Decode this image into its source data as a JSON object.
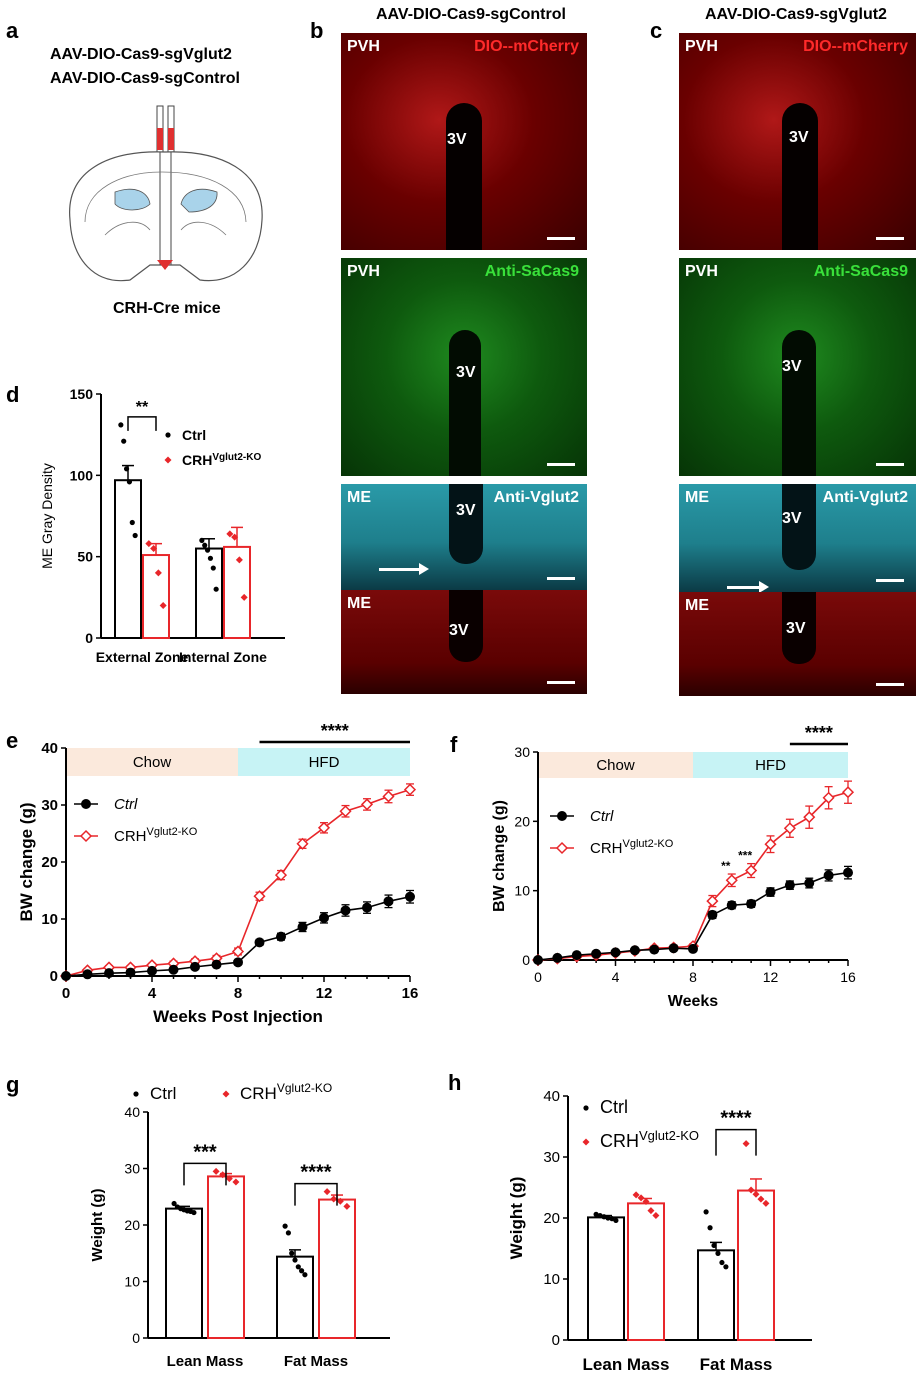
{
  "panels": {
    "a": {
      "letter": "a",
      "line1": "AAV-DIO-Cas9-sgVglut2",
      "line2": "AAV-DIO-Cas9-sgControl",
      "caption": "CRH-Cre mice"
    },
    "b": {
      "letter": "b",
      "header": "AAV-DIO-Cas9-sgControl"
    },
    "c": {
      "letter": "c",
      "header": "AAV-DIO-Cas9-sgVglut2"
    },
    "d": {
      "letter": "d"
    },
    "e": {
      "letter": "e"
    },
    "f": {
      "letter": "f"
    },
    "g": {
      "letter": "g"
    },
    "h": {
      "letter": "h"
    }
  },
  "micro": {
    "pvh": "PVH",
    "me": "ME",
    "v3": "3V",
    "mcherry": "DIO--mCherry",
    "cas9": "Anti-SaCas9",
    "vglut2": "Anti-Vglut2"
  },
  "colors": {
    "ctrl": "#000000",
    "ko": "#e8262a",
    "chow_band": "#fbe9dc",
    "hfd_band": "#c7f3f5"
  },
  "chart_data": [
    {
      "id": "d",
      "type": "bar",
      "ylabel": "ME Gray Density",
      "ylim": [
        0,
        150
      ],
      "yticks": [
        0,
        50,
        100,
        150
      ],
      "categories": [
        "External Zone",
        "Internal Zone"
      ],
      "legend": {
        "ctrl": "Ctrl",
        "ko_base": "CRH",
        "ko_sup": "Vglut2-KO"
      },
      "series": [
        {
          "name": "Ctrl",
          "values": [
            97,
            55
          ],
          "sem": [
            9,
            6
          ],
          "points": [
            [
              131,
              121,
              104,
              96,
              71,
              63
            ],
            [
              60,
              57,
              54,
              49,
              43,
              30
            ]
          ]
        },
        {
          "name": "CRHVglut2-KO",
          "values": [
            51,
            56
          ],
          "sem": [
            7,
            12
          ],
          "points": [
            [
              58,
              55,
              40,
              20
            ],
            [
              64,
              62,
              48,
              25
            ]
          ]
        }
      ],
      "significance": [
        {
          "group": "External Zone",
          "label": "**"
        }
      ]
    },
    {
      "id": "e",
      "type": "line",
      "xlabel": "Weeks Post Injection",
      "ylabel": "BW change (g)",
      "xlim": [
        0,
        16
      ],
      "xticks": [
        0,
        4,
        8,
        12,
        16
      ],
      "ylim": [
        0,
        40
      ],
      "yticks": [
        0,
        10,
        20,
        30,
        40
      ],
      "bands": [
        {
          "label": "Chow",
          "from": 0,
          "to": 8
        },
        {
          "label": "HFD",
          "from": 8,
          "to": 16
        }
      ],
      "significance": {
        "label": "****",
        "from": 9,
        "to": 16
      },
      "legend": {
        "ctrl": "Ctrl",
        "ko_base": "CRH",
        "ko_sup": "Vglut2-KO"
      },
      "x": [
        0,
        1,
        2,
        3,
        4,
        5,
        6,
        7,
        8,
        9,
        10,
        11,
        12,
        13,
        14,
        15,
        16
      ],
      "series": [
        {
          "name": "Ctrl",
          "values": [
            0,
            0.3,
            0.5,
            0.6,
            0.9,
            1.1,
            1.6,
            2.0,
            2.4,
            5.9,
            6.9,
            8.6,
            10.2,
            11.5,
            12.0,
            13.1,
            13.9
          ],
          "sem": [
            0,
            0.2,
            0.2,
            0.2,
            0.3,
            0.3,
            0.3,
            0.4,
            0.4,
            0.5,
            0.6,
            0.8,
            0.9,
            1.0,
            1.0,
            1.1,
            1.1
          ]
        },
        {
          "name": "CRHVglut2-KO",
          "values": [
            0,
            1.0,
            1.5,
            1.5,
            1.9,
            2.2,
            2.6,
            3.1,
            4.3,
            14.0,
            17.7,
            23.2,
            26.0,
            28.9,
            30.1,
            31.5,
            32.7
          ],
          "sem": [
            0,
            0.3,
            0.3,
            0.3,
            0.3,
            0.4,
            0.4,
            0.5,
            0.6,
            0.7,
            0.8,
            0.8,
            0.9,
            1.0,
            1.0,
            1.1,
            1.0
          ]
        }
      ]
    },
    {
      "id": "f",
      "type": "line",
      "xlabel": "Weeks",
      "ylabel": "BW change (g)",
      "xlim": [
        0,
        16
      ],
      "xticks": [
        0,
        4,
        8,
        12,
        16
      ],
      "ylim": [
        0,
        30
      ],
      "yticks": [
        0,
        10,
        20,
        30
      ],
      "bands": [
        {
          "label": "Chow",
          "from": 0,
          "to": 8
        },
        {
          "label": "HFD",
          "from": 8,
          "to": 16
        }
      ],
      "significance": {
        "label": "****",
        "from": 13,
        "to": 16
      },
      "point_marks": [
        {
          "x": 10,
          "label": "**"
        },
        {
          "x": 11,
          "label": "***"
        }
      ],
      "legend": {
        "ctrl": "Ctrl",
        "ko_base": "CRH",
        "ko_sup": "Vglut2-KO"
      },
      "x": [
        0,
        1,
        2,
        3,
        4,
        5,
        6,
        7,
        8,
        9,
        10,
        11,
        12,
        13,
        14,
        15,
        16
      ],
      "series": [
        {
          "name": "Ctrl",
          "values": [
            0,
            0.3,
            0.7,
            0.9,
            1.1,
            1.4,
            1.5,
            1.7,
            1.6,
            6.5,
            7.9,
            8.1,
            9.8,
            10.8,
            11.1,
            12.2,
            12.6
          ],
          "sem": [
            0,
            0.2,
            0.2,
            0.2,
            0.2,
            0.2,
            0.2,
            0.2,
            0.2,
            0.5,
            0.5,
            0.5,
            0.6,
            0.6,
            0.7,
            0.8,
            0.9
          ]
        },
        {
          "name": "CRHVglut2-KO",
          "values": [
            0,
            0.2,
            0.5,
            0.7,
            1.0,
            1.3,
            1.7,
            1.8,
            2.0,
            8.5,
            11.5,
            12.9,
            16.7,
            19.0,
            20.6,
            23.4,
            24.2
          ],
          "sem": [
            0,
            0.2,
            0.2,
            0.2,
            0.2,
            0.2,
            0.3,
            0.3,
            0.3,
            0.8,
            0.9,
            1.0,
            1.2,
            1.3,
            1.6,
            1.6,
            1.6
          ]
        }
      ]
    },
    {
      "id": "g",
      "type": "bar",
      "ylabel": "Weight (g)",
      "ylim": [
        0,
        40
      ],
      "yticks": [
        0,
        10,
        20,
        30,
        40
      ],
      "categories": [
        "Lean Mass",
        "Fat Mass"
      ],
      "legend": {
        "ctrl": "Ctrl",
        "ko_base": "CRH",
        "ko_sup": "Vglut2-KO"
      },
      "series": [
        {
          "name": "Ctrl",
          "values": [
            22.9,
            14.4
          ],
          "sem": [
            0.4,
            1.2
          ],
          "points": [
            [
              23.8,
              23.2,
              22.9,
              22.7,
              22.5,
              22.4,
              22.2
            ],
            [
              19.8,
              18.6,
              15.0,
              13.8,
              12.6,
              11.9,
              11.2
            ]
          ]
        },
        {
          "name": "CRHVglut2-KO",
          "values": [
            28.6,
            24.5
          ],
          "sem": [
            0.5,
            0.8
          ],
          "points": [
            [
              29.5,
              28.9,
              28.2,
              27.6
            ],
            [
              25.9,
              24.6,
              24.2,
              23.3
            ]
          ]
        }
      ],
      "significance": [
        {
          "group": "Lean Mass",
          "label": "***"
        },
        {
          "group": "Fat Mass",
          "label": "****"
        }
      ]
    },
    {
      "id": "h",
      "type": "bar",
      "ylabel": "Weight (g)",
      "ylim": [
        0,
        40
      ],
      "yticks": [
        0,
        10,
        20,
        30,
        40
      ],
      "categories": [
        "Lean Mass",
        "Fat Mass"
      ],
      "legend": {
        "ctrl": "Ctrl",
        "ko_base": "CRH",
        "ko_sup": "Vglut2-KO"
      },
      "series": [
        {
          "name": "Ctrl",
          "values": [
            20.1,
            14.7
          ],
          "sem": [
            0.3,
            1.3
          ],
          "points": [
            [
              20.6,
              20.4,
              20.2,
              20.0,
              19.9,
              19.6
            ],
            [
              21.0,
              18.4,
              15.5,
              14.2,
              12.7,
              12.0
            ]
          ]
        },
        {
          "name": "CRHVglut2-KO",
          "values": [
            22.4,
            24.5
          ],
          "sem": [
            0.8,
            1.9
          ],
          "points": [
            [
              23.8,
              23.3,
              22.7,
              21.2,
              20.4
            ],
            [
              32.2,
              24.6,
              23.9,
              23.1,
              22.4
            ]
          ]
        }
      ],
      "significance": [
        {
          "group": "Fat Mass",
          "label": "****"
        }
      ]
    }
  ]
}
